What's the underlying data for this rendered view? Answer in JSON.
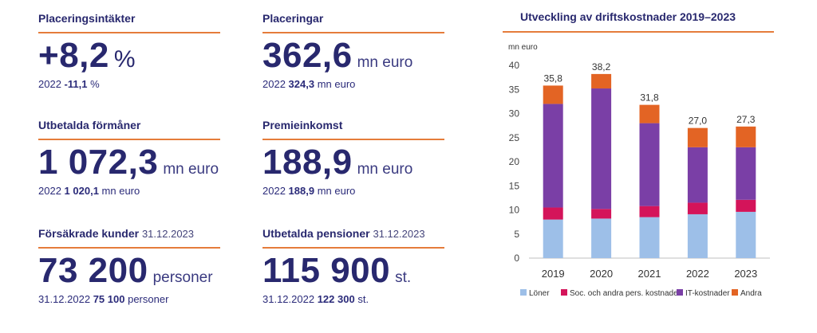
{
  "kpis": [
    {
      "title": "Placeringsintäkter",
      "date": "",
      "value": "+8,2",
      "unit": "%",
      "prev_label": "2022",
      "prev_value": "-11,1",
      "prev_unit": "%"
    },
    {
      "title": "Placeringar",
      "date": "",
      "value": "362,6",
      "unit": "mn euro",
      "prev_label": "2022",
      "prev_value": "324,3",
      "prev_unit": "mn euro"
    },
    {
      "title": "Utbetalda förmåner",
      "date": "",
      "value": "1 072,3",
      "unit": "mn euro",
      "prev_label": "2022",
      "prev_value": "1 020,1",
      "prev_unit": "mn euro"
    },
    {
      "title": "Premieinkomst",
      "date": "",
      "value": "188,9",
      "unit": "mn euro",
      "prev_label": "2022",
      "prev_value": "188,9",
      "prev_unit": "mn euro"
    },
    {
      "title": "Försäkrade kunder",
      "date": "31.12.2023",
      "value": "73 200",
      "unit": "personer",
      "prev_label": "31.12.2022",
      "prev_value": "75 100",
      "prev_unit": "personer"
    },
    {
      "title": "Utbetalda pensioner",
      "date": "31.12.2023",
      "value": "115 900",
      "unit": "st.",
      "prev_label": "31.12.2022",
      "prev_value": "122 300",
      "prev_unit": "st."
    }
  ],
  "chart_data": {
    "type": "bar",
    "stacked": true,
    "title": "Utveckling av driftskostnader 2019–2023",
    "ylabel": "mn euro",
    "ylim": [
      0,
      40
    ],
    "yticks": [
      0,
      5,
      10,
      15,
      20,
      25,
      30,
      35,
      40
    ],
    "grid": false,
    "legend": "bottom",
    "categories": [
      "2019",
      "2020",
      "2021",
      "2022",
      "2023"
    ],
    "series": [
      {
        "name": "Löner",
        "color": "#9dbfe8",
        "values": [
          8.0,
          8.2,
          8.5,
          9.1,
          9.6
        ]
      },
      {
        "name": "Soc. och andra pers. kostnader",
        "color": "#d4145a",
        "values": [
          2.5,
          2.0,
          2.3,
          2.4,
          2.5
        ]
      },
      {
        "name": "IT-kostnader",
        "color": "#7a3fa6",
        "values": [
          21.5,
          25.0,
          17.2,
          11.5,
          10.9
        ]
      },
      {
        "name": "Andra",
        "color": "#e36424",
        "values": [
          3.8,
          3.0,
          3.8,
          4.0,
          4.3
        ]
      }
    ],
    "totals": [
      "35,8",
      "38,2",
      "31,8",
      "27,0",
      "27,3"
    ]
  }
}
